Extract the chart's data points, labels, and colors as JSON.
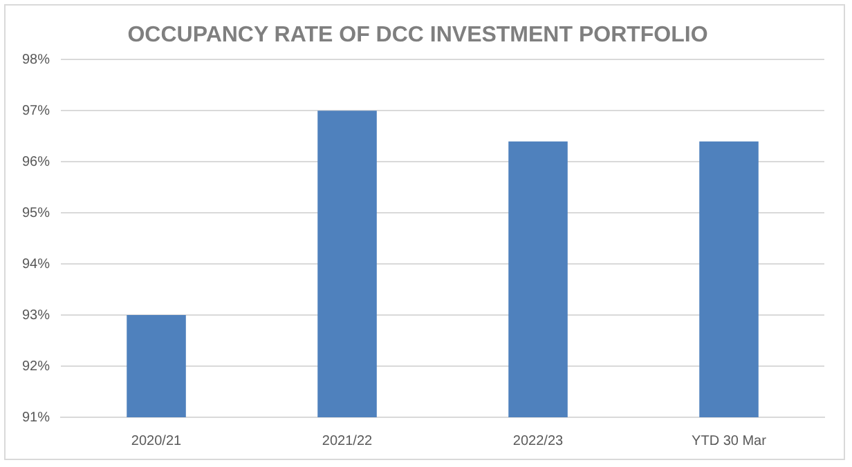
{
  "chart_data": {
    "type": "bar",
    "title": "OCCUPANCY RATE OF DCC INVESTMENT PORTFOLIO",
    "categories": [
      "2020/21",
      "2021/22",
      "2022/23",
      "YTD 30 Mar"
    ],
    "values": [
      93,
      97,
      96.4,
      96.4
    ],
    "color": "#4f81bd",
    "ylim": [
      91,
      98
    ],
    "yticks": [
      {
        "value": 91,
        "label": "91%"
      },
      {
        "value": 92,
        "label": "92%"
      },
      {
        "value": 93,
        "label": "93%"
      },
      {
        "value": 94,
        "label": "94%"
      },
      {
        "value": 95,
        "label": "95%"
      },
      {
        "value": 96,
        "label": "96%"
      },
      {
        "value": 97,
        "label": "97%"
      },
      {
        "value": 98,
        "label": "98%"
      }
    ],
    "grid": "y",
    "legend": false
  }
}
